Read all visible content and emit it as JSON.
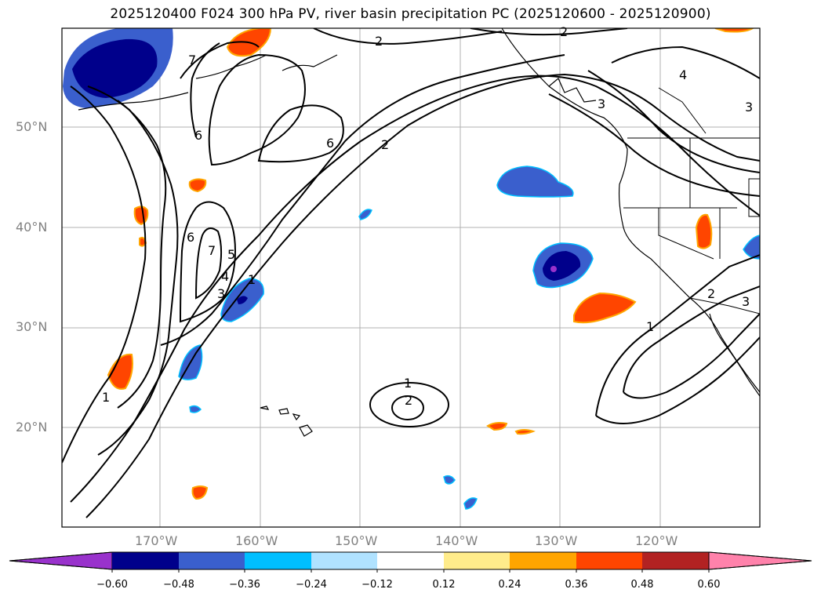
{
  "title": "2025120400 F024 300 hPa PV, river basin precipitation PC (2025120600 - 2025120900)",
  "lat_labels": [
    "50°N",
    "40°N",
    "30°N",
    "20°N"
  ],
  "lon_labels": [
    "170°W",
    "160°W",
    "150°W",
    "140°W",
    "130°W",
    "120°W"
  ],
  "colorbar": {
    "tick_labels": [
      "−0.60",
      "−0.48",
      "−0.36",
      "−0.24",
      "−0.12",
      "0.12",
      "0.24",
      "0.36",
      "0.48",
      "0.60"
    ],
    "colors": [
      "#9932cc",
      "#00008b",
      "#3a5fcd",
      "#00bfff",
      "#b0e2ff",
      "#ffffff",
      "#ffec8b",
      "#ffa500",
      "#ff4500",
      "#b22222",
      "#ff82ab"
    ]
  },
  "contour_labels": [
    "1",
    "2",
    "3",
    "4",
    "5",
    "6",
    "7"
  ],
  "colors": {
    "coast": "#000000",
    "grid": "#b0b0b0",
    "contour": "#000000"
  }
}
